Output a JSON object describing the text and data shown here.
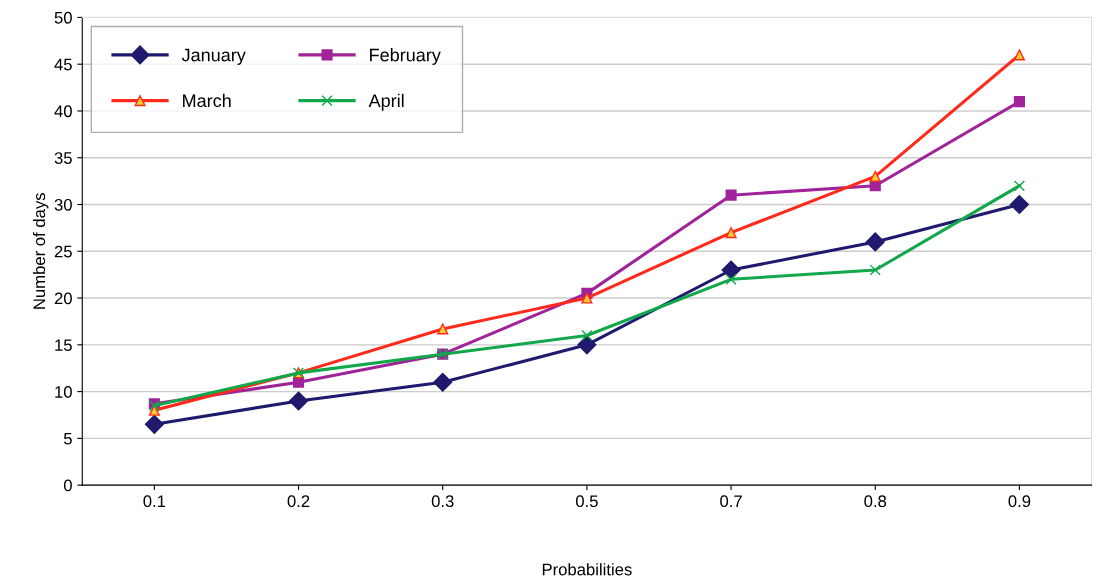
{
  "chart_data": {
    "type": "line",
    "xlabel": "Probabilities",
    "ylabel": "Number of days",
    "categories": [
      "0.1",
      "0.2",
      "0.3",
      "0.5",
      "0.7",
      "0.8",
      "0.9"
    ],
    "series": [
      {
        "name": "January",
        "color": "#1f1a6e",
        "marker": "diamond",
        "values": [
          6.5,
          9,
          11,
          15,
          23,
          26,
          30
        ]
      },
      {
        "name": "February",
        "color": "#a0239a",
        "marker": "square",
        "values": [
          8.7,
          11,
          14,
          20.5,
          31,
          32,
          41
        ]
      },
      {
        "name": "March",
        "color": "#ff2a1a",
        "marker": "triangle",
        "values": [
          8,
          12,
          16.7,
          20,
          27,
          33,
          46
        ]
      },
      {
        "name": "April",
        "color": "#10a84a",
        "marker": "cross",
        "values": [
          8.5,
          12,
          14,
          16,
          22,
          23,
          32
        ]
      }
    ],
    "ylim": [
      0,
      50
    ],
    "yticks": [
      0,
      5,
      10,
      15,
      20,
      25,
      30,
      35,
      40,
      45,
      50
    ],
    "grid": "y",
    "legend": "top left",
    "line_style": "solid"
  }
}
